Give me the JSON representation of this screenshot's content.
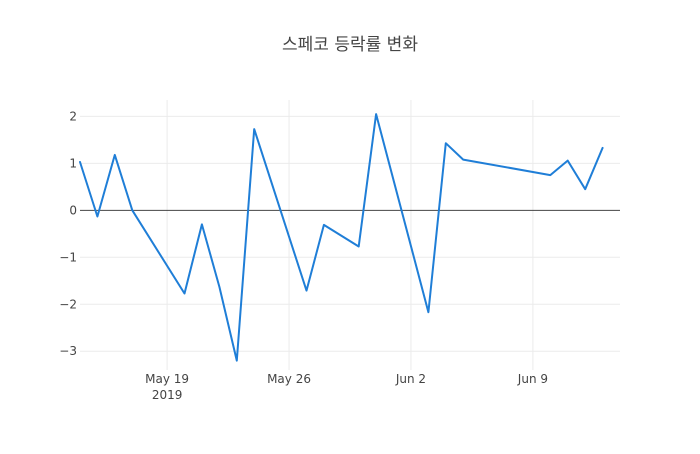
{
  "chart_data": {
    "type": "line",
    "title": "스페코 등락률 변화",
    "xlabel": "",
    "ylabel": "",
    "x_axis_type": "date",
    "xlim": [
      "2019-05-14",
      "2019-06-14"
    ],
    "ylim": [
      -3.4,
      2.35
    ],
    "yticks": [
      -3,
      -2,
      -1,
      0,
      1,
      2
    ],
    "ytick_labels": [
      "−3",
      "−2",
      "−1",
      "0",
      "1",
      "2"
    ],
    "xticks": [
      {
        "date": "2019-05-19",
        "label": "May 19",
        "sublabel": "2019"
      },
      {
        "date": "2019-05-26",
        "label": "May 26",
        "sublabel": ""
      },
      {
        "date": "2019-06-02",
        "label": "Jun 2",
        "sublabel": ""
      },
      {
        "date": "2019-06-09",
        "label": "Jun 9",
        "sublabel": ""
      }
    ],
    "grid": true,
    "zero_line": true,
    "legend": "none",
    "line_color": "#1f7ed7",
    "series": [
      {
        "x": [
          "2019-05-14",
          "2019-05-15",
          "2019-05-16",
          "2019-05-17",
          "2019-05-20",
          "2019-05-21",
          "2019-05-22",
          "2019-05-23",
          "2019-05-24",
          "2019-05-27",
          "2019-05-28",
          "2019-05-30",
          "2019-05-31",
          "2019-06-03",
          "2019-06-04",
          "2019-06-05",
          "2019-06-10",
          "2019-06-11",
          "2019-06-12",
          "2019-06-13"
        ],
        "values": [
          1.03,
          -0.13,
          1.18,
          0.0,
          -1.77,
          -0.3,
          -1.63,
          -3.2,
          1.73,
          -1.71,
          -0.31,
          -0.77,
          2.05,
          -2.17,
          1.43,
          1.08,
          0.75,
          1.06,
          0.45,
          1.33
        ]
      }
    ]
  }
}
